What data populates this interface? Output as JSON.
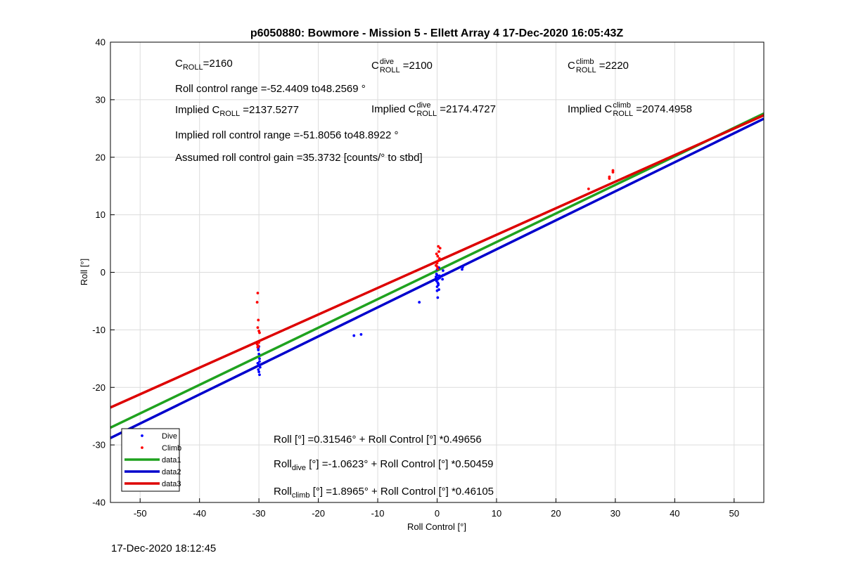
{
  "footer_timestamp": "17-Dec-2020 18:12:45",
  "annotations": {
    "c": "C",
    "c_roll_sub": "ROLL",
    "c_roll_val": "=2160",
    "c_dive_sup": "dive",
    "c_dive_val": "=2100",
    "c_climb_sup": "climb",
    "c_climb_val": "=2220",
    "roll_range": "Roll control range =-52.4409 to48.2569 °",
    "implied_prefix": "Implied C",
    "implied_roll_val": "=2137.5277",
    "implied_dive_val": "=2174.4727",
    "implied_climb_val": "=2074.4958",
    "implied_range": "Implied roll control range =-51.8056 to48.8922 °",
    "gain": "Assumed roll control gain =35.3732 [counts/° to stbd]",
    "fit_all": "Roll [°] =0.31546° + Roll Control [°] *0.49656",
    "fit_roll": "Roll",
    "fit_dive_sub": "dive",
    "fit_dive_rest": "[°] =-1.0623° + Roll Control [°] *0.50459",
    "fit_climb_sub": "climb",
    "fit_climb_rest": "[°] =1.8965° + Roll Control [°] *0.46105"
  },
  "chart_data": {
    "type": "scatter",
    "title": "p6050880: Bowmore - Mission 5 - Ellett Array 4 17-Dec-2020 16:05:43Z",
    "xlabel": "Roll Control [°]",
    "ylabel": "Roll [°]",
    "xlim": [
      -55,
      55
    ],
    "ylim": [
      -40,
      40
    ],
    "xticks": [
      -50,
      -40,
      -30,
      -20,
      -10,
      0,
      10,
      20,
      30,
      40,
      50
    ],
    "yticks": [
      -40,
      -30,
      -20,
      -10,
      0,
      10,
      20,
      30,
      40
    ],
    "grid": true,
    "legend_position": "bottom-left",
    "series": [
      {
        "name": "Dive",
        "kind": "points",
        "color": "#0000ff",
        "x": [
          -30.2,
          -30.1,
          -30.0,
          -29.9,
          -30.2,
          -30.0,
          -29.8,
          -30.1,
          -30.0,
          -29.9,
          -30.0,
          -30.1,
          -29.9,
          -30.0,
          -14.0,
          -12.8,
          -3.0,
          0.0,
          0.1,
          -0.1,
          0.2,
          0.0,
          0.3,
          -0.2,
          0.1,
          0.0,
          0.2,
          0.1,
          -0.1,
          0.0,
          0.3,
          0.4,
          0.1,
          1.0,
          1.0,
          0.9,
          0.4,
          4.2,
          4.3
        ],
        "y": [
          -13.0,
          -13.5,
          -14.2,
          -15.0,
          -15.8,
          -16.2,
          -16.5,
          -16.9,
          -17.3,
          -17.8,
          -12.9,
          -13.3,
          -15.5,
          -16.0,
          -11.0,
          -10.8,
          -5.2,
          -0.5,
          -1.0,
          -1.5,
          -2.0,
          -2.5,
          -3.0,
          -0.8,
          -1.8,
          -3.2,
          -2.2,
          -1.2,
          -0.3,
          0.5,
          0.8,
          -0.6,
          -4.4,
          0.3,
          -0.5,
          -1.2,
          -1.0,
          0.5,
          0.9
        ]
      },
      {
        "name": "Climb",
        "kind": "points",
        "color": "#ff0000",
        "x": [
          -30.2,
          -30.3,
          -30.1,
          -30.2,
          -30.0,
          -30.3,
          -30.2,
          -30.1,
          -30.0,
          -29.9,
          25.5,
          29.0,
          29.0,
          29.6,
          29.6,
          -0.2,
          0.0,
          0.2,
          0.4,
          0.1,
          -0.1,
          0.3,
          0.5,
          0.2,
          0.0,
          0.1
        ],
        "y": [
          -3.6,
          -5.2,
          -8.3,
          -9.6,
          -10.2,
          -12.5,
          -13.0,
          -12.8,
          -12.2,
          -10.5,
          14.5,
          16.3,
          16.6,
          17.4,
          17.7,
          1.2,
          1.6,
          2.0,
          2.4,
          2.8,
          3.2,
          3.6,
          4.2,
          4.5,
          1.0,
          0.6
        ]
      },
      {
        "name": "data1",
        "kind": "line",
        "color": "#1fa21f",
        "x": [
          -55,
          55
        ],
        "y": [
          -27.0,
          27.6
        ]
      },
      {
        "name": "data2",
        "kind": "line",
        "color": "#0000cc",
        "x": [
          -55,
          55
        ],
        "y": [
          -28.8,
          26.7
        ]
      },
      {
        "name": "data3",
        "kind": "line",
        "color": "#dd0000",
        "x": [
          -55,
          55
        ],
        "y": [
          -23.5,
          27.3
        ]
      }
    ]
  }
}
